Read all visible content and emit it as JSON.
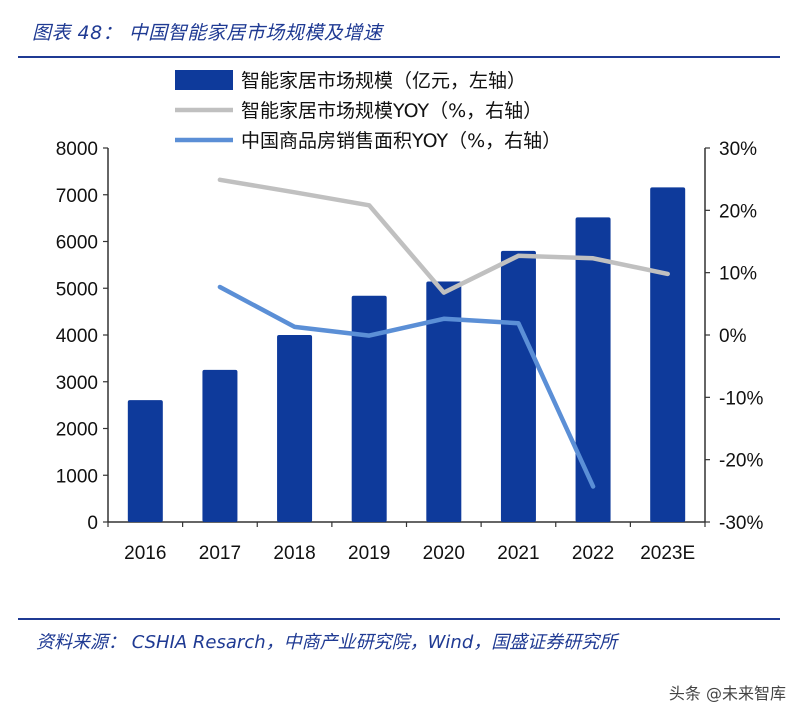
{
  "header": {
    "title": "图表 48：  中国智能家居市场规模及增速"
  },
  "footer": {
    "source": "资料来源：  CSHIA Resarch，中商产业研究院，Wind，国盛证券研究所",
    "watermark": "头条 @未来智库"
  },
  "colors": {
    "bar": "#0e3a9b",
    "yoy_market": "#c0c0c0",
    "yoy_housing": "#5b8fd6",
    "rule": "#1f3a93"
  },
  "chart_data": {
    "type": "bar",
    "categories": [
      "2016",
      "2017",
      "2018",
      "2019",
      "2020",
      "2021",
      "2022",
      "2023E"
    ],
    "series": [
      {
        "name": "智能家居市场规模（亿元，左轴）",
        "kind": "bar",
        "axis": "left",
        "values": [
          2608,
          3254,
          4000,
          4840,
          5144,
          5800,
          6515,
          7157
        ]
      },
      {
        "name": "智能家居市场规模YOY（%，右轴）",
        "kind": "line",
        "axis": "right",
        "values": [
          null,
          24.9,
          22.9,
          20.8,
          6.8,
          12.7,
          12.3,
          9.8
        ]
      },
      {
        "name": "中国商品房销售面积YOY（%，右轴）",
        "kind": "line",
        "axis": "right",
        "values": [
          null,
          7.7,
          1.3,
          -0.1,
          2.6,
          1.9,
          -24.3,
          null
        ]
      }
    ],
    "left_axis": {
      "ylim": [
        0,
        8000
      ],
      "ticks": [
        0,
        1000,
        2000,
        3000,
        4000,
        5000,
        6000,
        7000,
        8000
      ],
      "tick_labels": [
        "0",
        "1000",
        "2000",
        "3000",
        "4000",
        "5000",
        "6000",
        "7000",
        "8000"
      ]
    },
    "right_axis": {
      "ylim": [
        -30,
        30
      ],
      "ticks": [
        -30,
        -20,
        -10,
        0,
        10,
        20,
        30
      ],
      "tick_labels": [
        "-30%",
        "-20%",
        "-10%",
        "0%",
        "10%",
        "20%",
        "30%"
      ]
    },
    "legend_position": "top"
  }
}
